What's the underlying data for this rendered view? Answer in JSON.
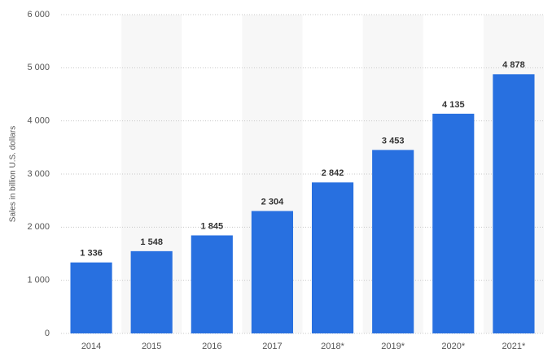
{
  "chart_data": {
    "type": "bar",
    "y_label": "Sales in billion U.S. dollars",
    "categories": [
      "2014",
      "2015",
      "2016",
      "2017",
      "2018*",
      "2019*",
      "2020*",
      "2021*"
    ],
    "values": [
      1336,
      1548,
      1845,
      2304,
      2842,
      3453,
      4135,
      4878
    ],
    "value_labels": [
      "1 336",
      "1 548",
      "1 845",
      "2 304",
      "2 842",
      "3 453",
      "4 135",
      "4 878"
    ],
    "color": "#2870e0",
    "ylim": [
      0,
      6000
    ],
    "yticks": [
      {
        "value": 0,
        "label": "0"
      },
      {
        "value": 1000,
        "label": "1 000"
      },
      {
        "value": 2000,
        "label": "2 000"
      },
      {
        "value": 3000,
        "label": "3 000"
      },
      {
        "value": 4000,
        "label": "4 000"
      },
      {
        "value": 5000,
        "label": "5 000"
      },
      {
        "value": 6000,
        "label": "6 000"
      }
    ],
    "grid": true
  }
}
